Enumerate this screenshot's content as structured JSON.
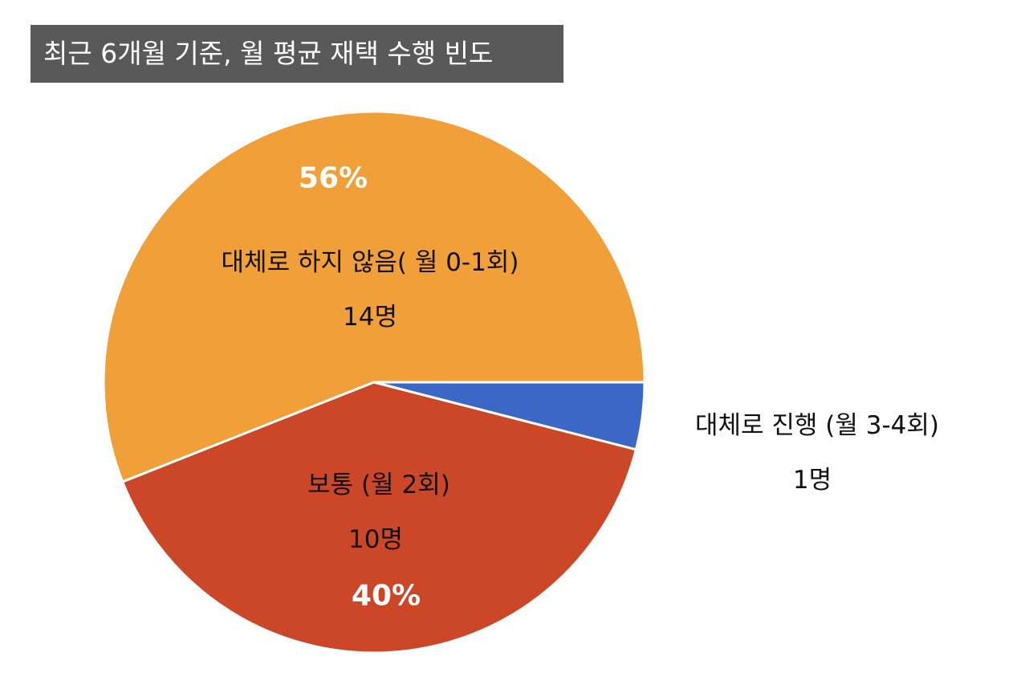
{
  "chart_data": {
    "type": "pie",
    "title": "최근 6개월 기준, 월 평균 재택 수행 빈도",
    "slices": [
      {
        "label": "대체로 하지 않음( 월 0-1회)",
        "count_label": "14명",
        "value": 14,
        "percent_label": "56%",
        "color": "#F19F39"
      },
      {
        "label": "보통 (월 2회)",
        "count_label": "10명",
        "value": 10,
        "percent_label": "40%",
        "color": "#CC4628"
      },
      {
        "label": "대체로 진행 (월 3-4회)",
        "count_label": "1명",
        "value": 1,
        "percent_label": "",
        "color": "#3B67C6"
      }
    ],
    "start_direction": "3 o'clock",
    "direction": "counterclockwise"
  }
}
